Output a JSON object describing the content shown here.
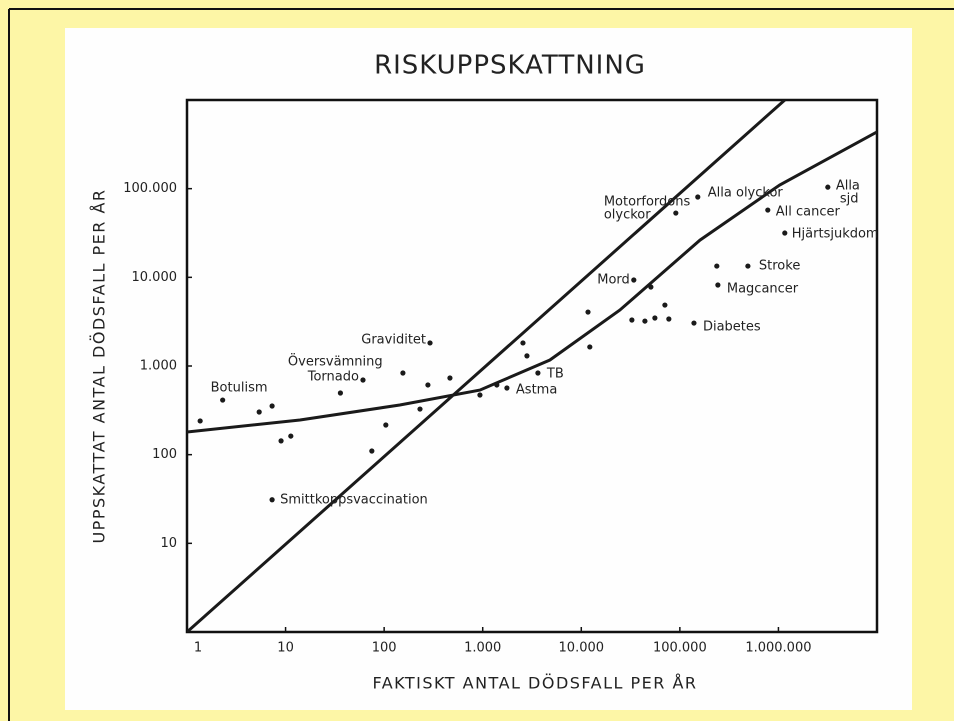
{
  "chart_data": {
    "type": "scatter",
    "title": "RISKUPPSKATTNING",
    "xlabel": "FAKTISKT ANTAL DÖDSFALL PER ÅR",
    "ylabel": "UPPSKATTAT ANTAL DÖDSFALL PER ÅR",
    "xscale": "log",
    "yscale": "log",
    "xlim": [
      1,
      10000000
    ],
    "ylim": [
      1,
      1000000
    ],
    "xticks": [
      1,
      10,
      100,
      {
        "value": 1000,
        "label": "1.000"
      },
      {
        "value": 10000,
        "label": "10.000"
      },
      {
        "value": 100000,
        "label": "100.000"
      },
      {
        "value": 1000000,
        "label": "1.000.000"
      }
    ],
    "yticks": [
      10,
      100,
      {
        "value": 1000,
        "label": "1.000"
      },
      {
        "value": 10000,
        "label": "10.000"
      },
      {
        "value": 100000,
        "label": "100.000"
      }
    ],
    "color": "#1a1a1a",
    "x": [
      1.36,
      2.3,
      5.4,
      7.3,
      9,
      11.3,
      7.3,
      36,
      61,
      75,
      104,
      155,
      231,
      278,
      292,
      465,
      937,
      1390,
      1760,
      2560,
      2810,
      3630,
      11700,
      12200,
      32600,
      34100,
      44200,
      50800,
      55800,
      70500,
      77300,
      91000,
      139000,
      152000,
      237000,
      243000,
      490000,
      780000,
      1160000,
      3170000
    ],
    "values": [
      240,
      413,
      303,
      354,
      143,
      162,
      31,
      496,
      695,
      110,
      216,
      834,
      327,
      611,
      1820,
      732,
      471,
      611,
      565,
      1820,
      1300,
      834,
      4060,
      1640,
      3300,
      9330,
      3210,
      7780,
      3480,
      4870,
      3390,
      53100,
      3050,
      80500,
      13400,
      8190,
      13400,
      57400,
      31600,
      104000
    ],
    "lines": [
      {
        "x": [
          1,
          1160000
        ],
        "values": [
          1,
          1000000
        ]
      },
      {
        "x": [
          1,
          14,
          144,
          937,
          4800,
          24600,
          160000,
          1030000,
          10000000
        ],
        "values": [
          180,
          246,
          363,
          535,
          1170,
          4270,
          26300,
          110000,
          437000
        ]
      }
    ],
    "annotations": [
      {
        "text": "Botulism",
        "x": 2.3,
        "y": 413
      },
      {
        "text": "Smittkoppsvaccination",
        "x": 7.3,
        "y": 31
      },
      {
        "text": "Översvämning",
        "x": 155,
        "y": 834
      },
      {
        "text": "Tornado",
        "x": 61,
        "y": 695
      },
      {
        "text": "Graviditet",
        "x": 292,
        "y": 1820
      },
      {
        "text": "Astma",
        "x": 1760,
        "y": 565
      },
      {
        "text": "TB",
        "x": 3630,
        "y": 834
      },
      {
        "text": "Mord",
        "x": 34100,
        "y": 9330
      },
      {
        "text": [
          "Motorfordons",
          "olyckor"
        ],
        "x": 91000,
        "y": 53100
      },
      {
        "text": "Alla olyckor",
        "x": 152000,
        "y": 80500
      },
      {
        "text": "Diabetes",
        "x": 139000,
        "y": 3050
      },
      {
        "text": "Magcancer",
        "x": 243000,
        "y": 8190
      },
      {
        "text": "Stroke",
        "x": 490000,
        "y": 13400
      },
      {
        "text": "All cancer",
        "x": 780000,
        "y": 57400
      },
      {
        "text": "Hjärtsjukdom",
        "x": 1160000,
        "y": 31600
      },
      {
        "text": [
          "Alla",
          "sjd"
        ],
        "x": 3170000,
        "y": 104000
      }
    ]
  }
}
